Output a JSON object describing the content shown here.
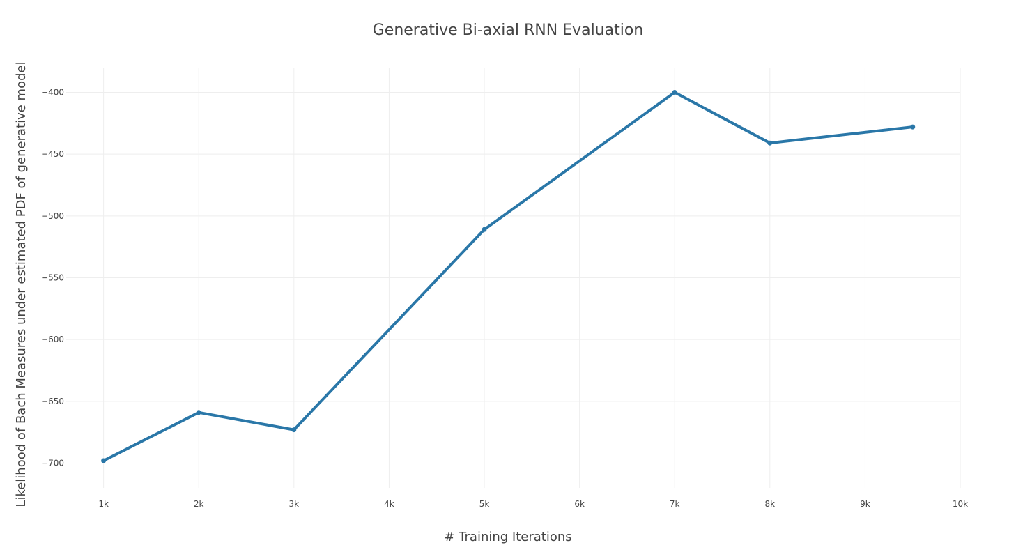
{
  "chart_data": {
    "type": "line",
    "title": "Generative Bi-axial RNN Evaluation",
    "xlabel": "# Training Iterations",
    "ylabel": "Likelihood of Bach Measures under estimated PDF of generative model",
    "xlim": [
      600,
      10000
    ],
    "ylim": [
      -720,
      -380
    ],
    "x_ticks": [
      1000,
      2000,
      3000,
      4000,
      5000,
      6000,
      7000,
      8000,
      9000,
      10000
    ],
    "x_tick_labels": [
      "1k",
      "2k",
      "3k",
      "4k",
      "5k",
      "6k",
      "7k",
      "8k",
      "9k",
      "10k"
    ],
    "y_ticks": [
      -700,
      -650,
      -600,
      -550,
      -500,
      -450,
      -400
    ],
    "y_tick_labels": [
      "−700",
      "−650",
      "−600",
      "−550",
      "−500",
      "−450",
      "−400"
    ],
    "grid": true,
    "series": [
      {
        "color": "#2a77a8",
        "x": [
          1000,
          2000,
          3000,
          5000,
          7000,
          8000,
          9500
        ],
        "y": [
          -698,
          -659,
          -673,
          -511,
          -400,
          -441,
          -428
        ]
      }
    ]
  }
}
